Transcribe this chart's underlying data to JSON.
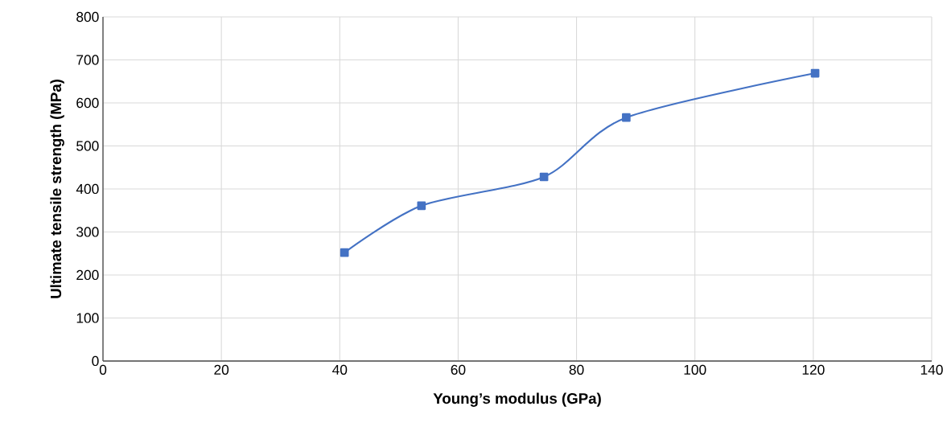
{
  "chart_data": {
    "type": "line",
    "xlabel": "Young’s modulus (GPa)",
    "ylabel": "Ultimate tensile strength (MPa)",
    "x": [
      40.8,
      53.8,
      74.5,
      88.4,
      120.3
    ],
    "series": [
      {
        "color": "#4472c4",
        "values": [
          252,
          361,
          428,
          566,
          669
        ]
      }
    ],
    "xlim": [
      0,
      140
    ],
    "xticks": [
      0,
      20,
      40,
      60,
      80,
      100,
      120,
      140
    ],
    "ylim": [
      0,
      800
    ],
    "yticks": [
      0,
      100,
      200,
      300,
      400,
      500,
      600,
      700,
      800
    ],
    "grid": true,
    "marker": "square",
    "line_style": "solid"
  }
}
